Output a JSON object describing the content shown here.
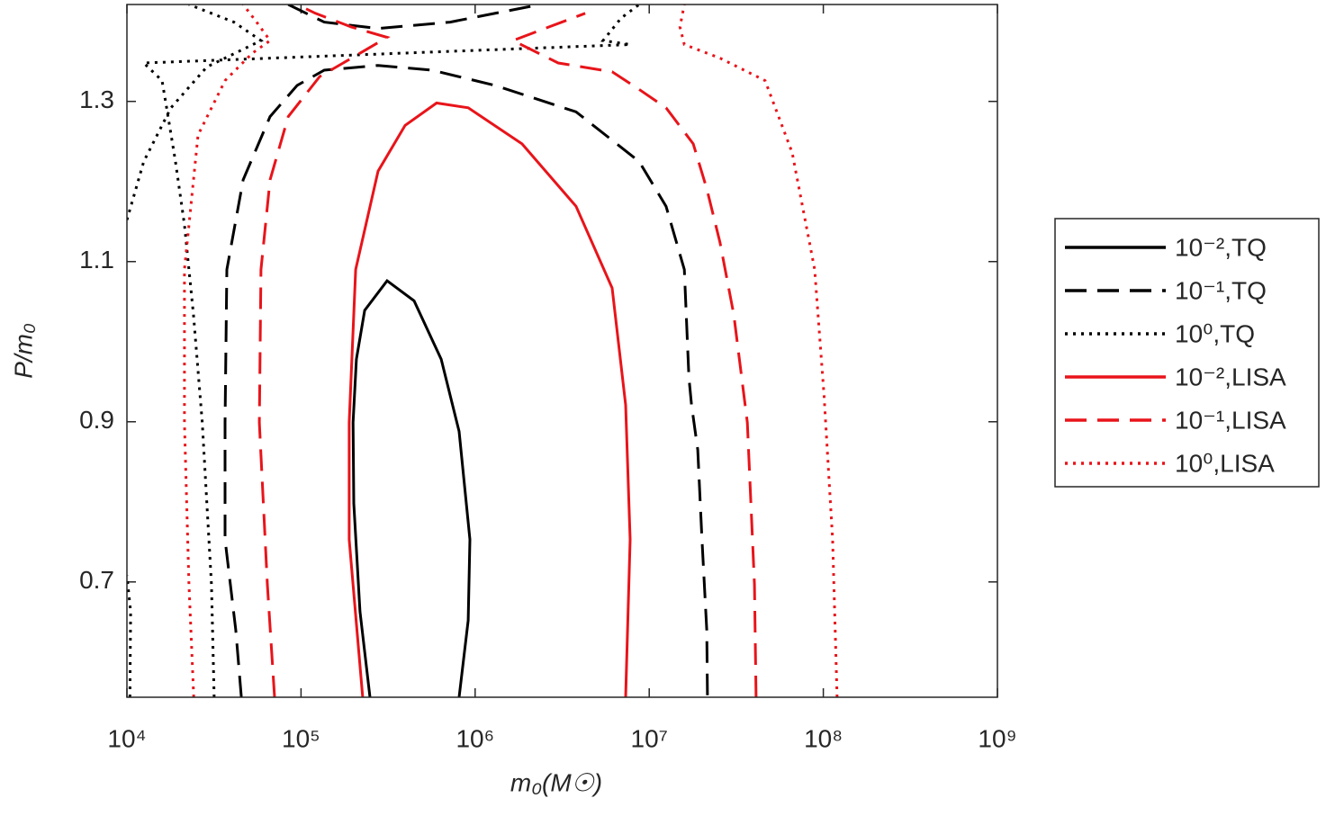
{
  "chart_data": {
    "type": "line",
    "xlabel": "m₀(M☉)",
    "ylabel": "P/m₀",
    "xscale": "log",
    "xlim": [
      10000,
      1000000000
    ],
    "ylim": [
      0.556,
      1.421
    ],
    "xticks": [
      {
        "value": 10000,
        "label": "10⁴"
      },
      {
        "value": 100000,
        "label": "10⁵"
      },
      {
        "value": 1000000,
        "label": "10⁶"
      },
      {
        "value": 10000000,
        "label": "10⁷"
      },
      {
        "value": 100000000,
        "label": "10⁸"
      },
      {
        "value": 1000000000,
        "label": "10⁹"
      }
    ],
    "yticks": [
      0.7,
      0.9,
      1.1,
      1.3
    ],
    "legend": "outside-right",
    "series": [
      {
        "name": "10⁻²,TQ",
        "color": "#000000",
        "style": "solid",
        "x": [
          249000,
          218000,
          201000,
          199000,
          208000,
          232000,
          312000,
          446000,
          638000,
          809000,
          933000,
          912000,
          809000
        ],
        "y": [
          0.556,
          0.663,
          0.798,
          0.899,
          0.978,
          1.039,
          1.076,
          1.051,
          0.978,
          0.888,
          0.753,
          0.652,
          0.556
        ]
      },
      {
        "name": "10⁻¹,TQ",
        "color": "#000000",
        "style": "dashed",
        "x": [
          45400,
          42200,
          36600,
          36600,
          37500,
          46500,
          66400,
          95000,
          136000,
          277000,
          566000,
          1300000,
          3800000,
          8750000,
          12500000,
          15900000,
          16900000,
          17500000,
          19000000,
          20100000,
          21400000,
          21600000,
          null,
          84400,
          136000,
          277000,
          718000,
          2360000
        ],
        "y": [
          0.556,
          0.64,
          0.753,
          0.899,
          1.09,
          1.202,
          1.281,
          1.32,
          1.339,
          1.345,
          1.339,
          1.32,
          1.287,
          1.225,
          1.169,
          1.09,
          0.955,
          0.921,
          0.865,
          0.753,
          0.64,
          0.556,
          null,
          1.421,
          1.399,
          1.391,
          1.399,
          1.421
        ]
      },
      {
        "name": "10⁰,TQ",
        "color": "#000000",
        "style": "dotted",
        "x": [
          10400,
          10500,
          10000,
          null,
          10000,
          12500,
          17900,
          28800,
          46500,
          58900,
          41200,
          22700,
          null,
          31700,
          30600,
          27100,
          24100,
          21400,
          19000,
          16900,
          15900,
          12500,
          7770000,
          5430000,
          6900000,
          8750000
        ],
        "y": [
          0.556,
          0.663,
          0.708,
          null,
          1.152,
          1.225,
          1.292,
          1.343,
          1.365,
          1.376,
          1.399,
          1.421,
          null,
          0.556,
          0.697,
          0.899,
          1.034,
          1.146,
          1.225,
          1.292,
          1.326,
          1.348,
          1.371,
          1.376,
          1.404,
          1.421
        ]
      },
      {
        "name": "10⁻²,LISA",
        "color": "#e8141a",
        "style": "solid",
        "x": [
          226000,
          189000,
          189000,
          206000,
          277000,
          396000,
          601000,
          912000,
          1860000,
          3800000,
          6120000,
          7320000,
          7770000,
          7320000
        ],
        "y": [
          0.556,
          0.753,
          0.899,
          1.09,
          1.213,
          1.27,
          1.298,
          1.292,
          1.247,
          1.169,
          1.067,
          0.921,
          0.753,
          0.556
        ]
      },
      {
        "name": "10⁻¹,LISA",
        "color": "#e8141a",
        "style": "dashed",
        "x": [
          70500,
          64100,
          57600,
          58900,
          66400,
          84400,
          128000,
          206000,
          312000,
          194000,
          121000,
          95000,
          null,
          41100000,
          40200000,
          36600000,
          30600000,
          25500000,
          21400000,
          17900000,
          12500000,
          8750000,
          6120000,
          3000000,
          1650000,
          2660000,
          4290000
        ],
        "y": [
          0.556,
          0.697,
          0.899,
          1.09,
          1.202,
          1.281,
          1.331,
          1.357,
          1.38,
          1.393,
          1.41,
          1.421,
          null,
          0.556,
          0.697,
          0.899,
          1.034,
          1.124,
          1.191,
          1.247,
          1.292,
          1.315,
          1.337,
          1.348,
          1.376,
          1.393,
          1.41
        ]
      },
      {
        "name": "10⁰,LISA",
        "color": "#e8141a",
        "style": "dotted",
        "x": [
          24200,
          22700,
          21400,
          21400,
          25600,
          36600,
          52400,
          66400,
          55600,
          46500,
          null,
          120000000,
          113000000,
          101000000,
          89200000,
          66200000,
          46300000,
          25500000,
          15900000,
          15000000,
          15900000
        ],
        "y": [
          0.556,
          0.697,
          0.899,
          1.09,
          1.258,
          1.326,
          1.36,
          1.376,
          1.399,
          1.421,
          null,
          0.556,
          0.753,
          0.933,
          1.09,
          1.236,
          1.326,
          1.354,
          1.371,
          1.393,
          1.421
        ]
      }
    ]
  }
}
